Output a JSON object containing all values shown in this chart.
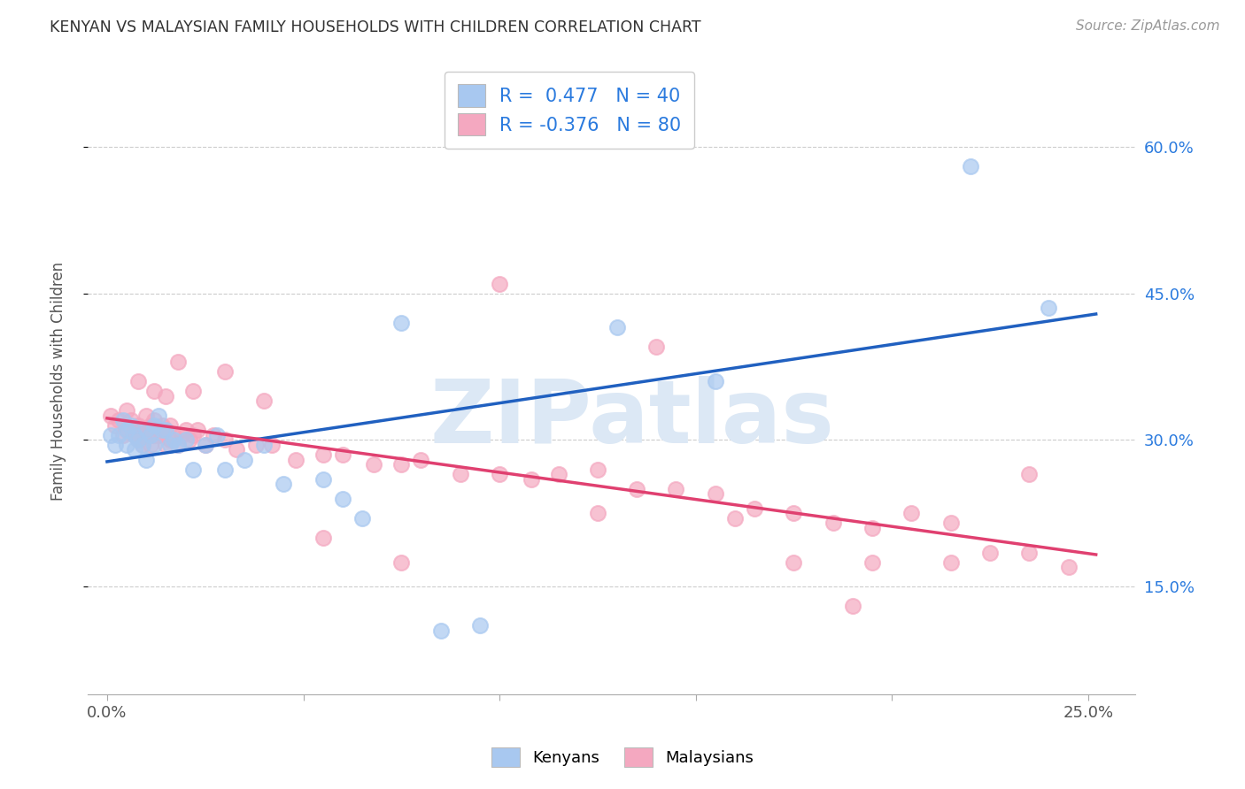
{
  "title": "KENYAN VS MALAYSIAN FAMILY HOUSEHOLDS WITH CHILDREN CORRELATION CHART",
  "source": "Source: ZipAtlas.com",
  "ylabel": "Family Households with Children",
  "ytick_labels": [
    "15.0%",
    "30.0%",
    "45.0%",
    "60.0%"
  ],
  "ytick_values": [
    0.15,
    0.3,
    0.45,
    0.6
  ],
  "xtick_values": [
    0.0,
    0.05,
    0.1,
    0.15,
    0.2,
    0.25
  ],
  "xtick_labels_show": [
    "0.0%",
    "",
    "",
    "",
    "",
    "25.0%"
  ],
  "xlim": [
    -0.005,
    0.262
  ],
  "ylim": [
    0.04,
    0.68
  ],
  "kenyan_color": "#a8c8f0",
  "malaysian_color": "#f4a8c0",
  "kenyan_line_color": "#2060c0",
  "malaysian_line_color": "#e04070",
  "watermark_color": "#dce8f5",
  "watermark": "ZIPatlas",
  "kenyan_R": 0.477,
  "kenyan_N": 40,
  "malaysian_R": -0.376,
  "malaysian_N": 80,
  "kenyan_x": [
    0.001,
    0.002,
    0.003,
    0.004,
    0.005,
    0.005,
    0.006,
    0.007,
    0.007,
    0.008,
    0.009,
    0.01,
    0.01,
    0.011,
    0.012,
    0.012,
    0.013,
    0.014,
    0.015,
    0.016,
    0.017,
    0.018,
    0.02,
    0.022,
    0.025,
    0.028,
    0.03,
    0.035,
    0.04,
    0.045,
    0.055,
    0.06,
    0.065,
    0.075,
    0.085,
    0.095,
    0.13,
    0.155,
    0.22,
    0.24
  ],
  "kenyan_y": [
    0.305,
    0.295,
    0.305,
    0.32,
    0.295,
    0.31,
    0.315,
    0.305,
    0.29,
    0.3,
    0.295,
    0.28,
    0.31,
    0.305,
    0.295,
    0.315,
    0.325,
    0.31,
    0.31,
    0.295,
    0.3,
    0.295,
    0.3,
    0.27,
    0.295,
    0.305,
    0.27,
    0.28,
    0.295,
    0.255,
    0.26,
    0.24,
    0.22,
    0.42,
    0.105,
    0.11,
    0.415,
    0.36,
    0.58,
    0.435
  ],
  "malaysian_x": [
    0.001,
    0.002,
    0.003,
    0.004,
    0.005,
    0.005,
    0.006,
    0.007,
    0.007,
    0.008,
    0.008,
    0.009,
    0.009,
    0.01,
    0.01,
    0.011,
    0.011,
    0.012,
    0.012,
    0.013,
    0.013,
    0.014,
    0.015,
    0.015,
    0.016,
    0.016,
    0.017,
    0.018,
    0.019,
    0.02,
    0.021,
    0.022,
    0.023,
    0.025,
    0.027,
    0.03,
    0.033,
    0.038,
    0.042,
    0.048,
    0.055,
    0.06,
    0.068,
    0.075,
    0.08,
    0.09,
    0.1,
    0.108,
    0.115,
    0.125,
    0.135,
    0.145,
    0.155,
    0.16,
    0.165,
    0.175,
    0.185,
    0.195,
    0.205,
    0.215,
    0.225,
    0.235,
    0.245,
    0.125,
    0.175,
    0.195,
    0.215,
    0.235,
    0.008,
    0.012,
    0.015,
    0.018,
    0.022,
    0.03,
    0.04,
    0.055,
    0.075,
    0.1,
    0.14,
    0.19
  ],
  "malaysian_y": [
    0.325,
    0.315,
    0.32,
    0.305,
    0.31,
    0.33,
    0.32,
    0.31,
    0.305,
    0.315,
    0.3,
    0.305,
    0.295,
    0.31,
    0.325,
    0.315,
    0.295,
    0.305,
    0.32,
    0.31,
    0.305,
    0.315,
    0.295,
    0.31,
    0.3,
    0.315,
    0.305,
    0.295,
    0.305,
    0.31,
    0.3,
    0.305,
    0.31,
    0.295,
    0.305,
    0.3,
    0.29,
    0.295,
    0.295,
    0.28,
    0.285,
    0.285,
    0.275,
    0.275,
    0.28,
    0.265,
    0.265,
    0.26,
    0.265,
    0.27,
    0.25,
    0.25,
    0.245,
    0.22,
    0.23,
    0.225,
    0.215,
    0.21,
    0.225,
    0.215,
    0.185,
    0.185,
    0.17,
    0.225,
    0.175,
    0.175,
    0.175,
    0.265,
    0.36,
    0.35,
    0.345,
    0.38,
    0.35,
    0.37,
    0.34,
    0.2,
    0.175,
    0.46,
    0.395,
    0.13
  ]
}
